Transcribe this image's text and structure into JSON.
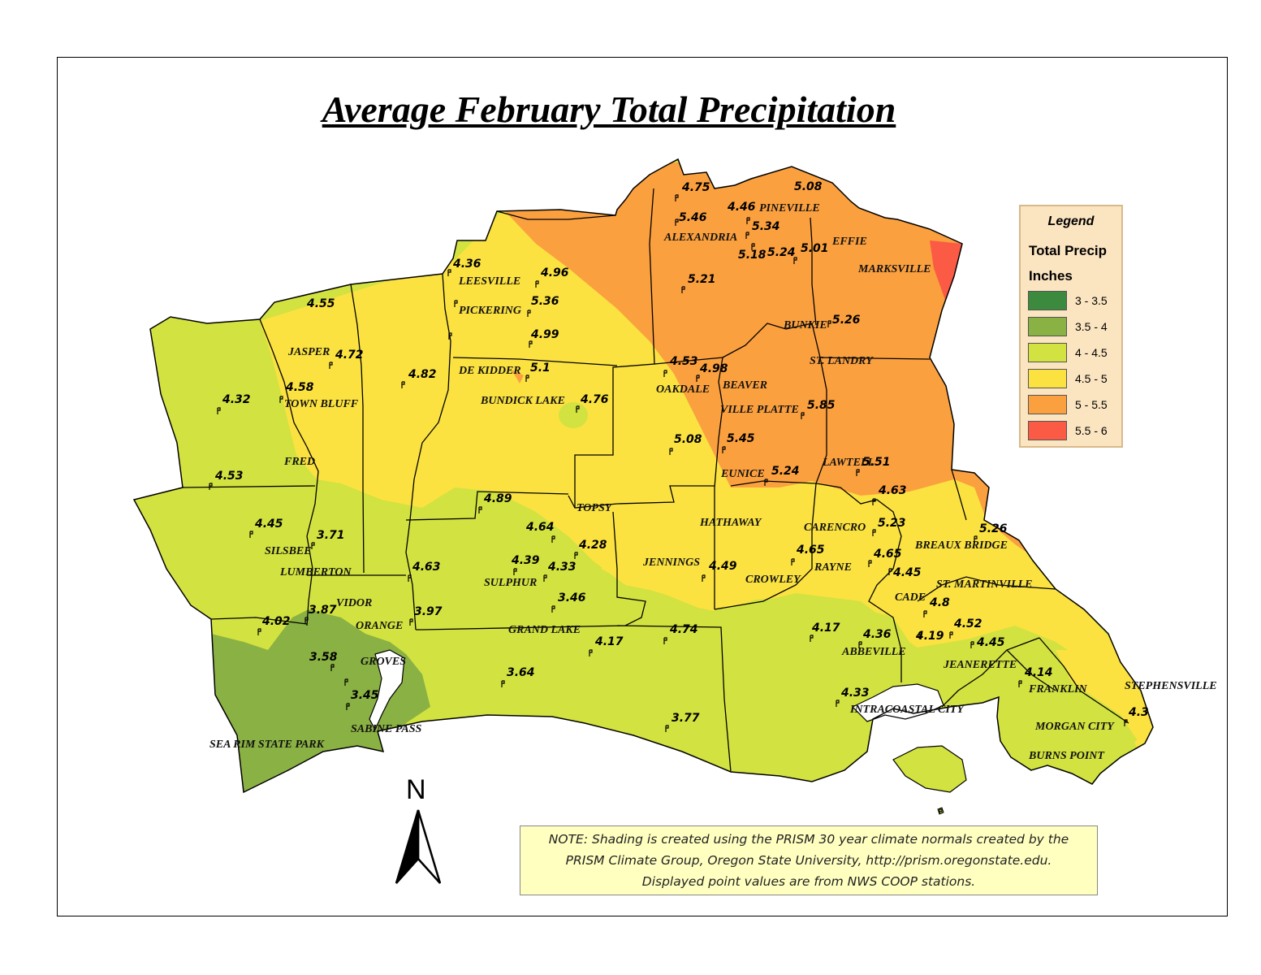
{
  "title": "Average February Total Precipitation",
  "legend": {
    "heading": "Legend",
    "field": "Total Precip",
    "units": "Inches",
    "classes": [
      {
        "label": "3 - 3.5",
        "color": "#3b8a3e"
      },
      {
        "label": "3.5 - 4",
        "color": "#8ab143"
      },
      {
        "label": "4 - 4.5",
        "color": "#d2e240"
      },
      {
        "label": "4.5 - 5",
        "color": "#fbe241"
      },
      {
        "label": "5 - 5.5",
        "color": "#fba03f"
      },
      {
        "label": "5.5 - 6",
        "color": "#fb5a44"
      }
    ]
  },
  "north_arrow": "N",
  "note": {
    "line1": "NOTE: Shading is created using the PRISM 30 year climate normals created by the",
    "line2": "PRISM Climate Group, Oregon State University, http://prism.oregonstate.edu.",
    "line3": "Displayed point values are from NWS COOP stations."
  },
  "places": {
    "pineville": "PINEVILLE",
    "alexandria": "ALEXANDRIA",
    "effie": "EFFIE",
    "marksville": "MARKSVILLE",
    "leesville": "LEESVILLE",
    "pickering": "PICKERING",
    "jasper": "JASPER",
    "town_bluff": "TOWN BLUFF",
    "dekidder": "DE KIDDER",
    "bundick_lake": "BUNDICK LAKE",
    "bunkie": "BUNKIE",
    "st_landry": "ST. LANDRY",
    "oakdale": "OAKDALE",
    "beaver": "BEAVER",
    "ville_platte": "VILLE PLATTE",
    "fred": "FRED",
    "eunice": "EUNICE",
    "lawtell": "LAWTELL",
    "topsy": "TOPSY",
    "hathaway": "HATHAWAY",
    "carencro": "CARENCRO",
    "breaux_bridge": "BREAUX BRIDGE",
    "silsbee": "SILSBEE",
    "jennings": "JENNINGS",
    "rayne": "RAYNE",
    "lumberton": "LUMBERTON",
    "sulphur": "SULPHUR",
    "crowley": "CROWLEY",
    "st_martinville": "ST. MARTINVILLE",
    "vidor": "VIDOR",
    "cade": "CADE",
    "orange": "ORANGE",
    "grand_lake": "GRAND LAKE",
    "abbeville": "ABBEVILLE",
    "groves": "GROVES",
    "jeanerette": "JEANERETTE",
    "franklin": "FRANKLIN",
    "stephensville": "STEPHENSVILLE",
    "intracoastal_city": "INTRACOASTAL CITY",
    "sabine_pass": "SABINE PASS",
    "morgan_city": "MORGAN CITY",
    "sea_rim": "SEA RIM STATE PARK",
    "burns_point": "BURNS POINT"
  },
  "stations": [
    {
      "value": "4.75"
    },
    {
      "value": "5.08"
    },
    {
      "value": "4.46"
    },
    {
      "value": "5.46"
    },
    {
      "value": "5.34"
    },
    {
      "value": "5.18"
    },
    {
      "value": "5.24"
    },
    {
      "value": "5.01"
    },
    {
      "value": "4.36"
    },
    {
      "value": "4.96"
    },
    {
      "value": "5.21"
    },
    {
      "value": "4.55"
    },
    {
      "value": "5.36"
    },
    {
      "value": "5.26"
    },
    {
      "value": "4.99"
    },
    {
      "value": "4.72"
    },
    {
      "value": "4.53"
    },
    {
      "value": "4.98"
    },
    {
      "value": "5.1"
    },
    {
      "value": "4.82"
    },
    {
      "value": "4.58"
    },
    {
      "value": "4.32"
    },
    {
      "value": "4.76"
    },
    {
      "value": "5.85"
    },
    {
      "value": "5.08"
    },
    {
      "value": "5.45"
    },
    {
      "value": "4.53"
    },
    {
      "value": "5.24"
    },
    {
      "value": "5.51"
    },
    {
      "value": "4.89"
    },
    {
      "value": "4.63"
    },
    {
      "value": "4.45"
    },
    {
      "value": "5.23"
    },
    {
      "value": "4.64"
    },
    {
      "value": "3.71"
    },
    {
      "value": "5.26"
    },
    {
      "value": "4.28"
    },
    {
      "value": "4.65"
    },
    {
      "value": "4.65"
    },
    {
      "value": "4.39"
    },
    {
      "value": "4.33"
    },
    {
      "value": "4.49"
    },
    {
      "value": "4.63"
    },
    {
      "value": "4.45"
    },
    {
      "value": "3.46"
    },
    {
      "value": "3.87"
    },
    {
      "value": "3.97"
    },
    {
      "value": "4.8"
    },
    {
      "value": "4.02"
    },
    {
      "value": "4.17"
    },
    {
      "value": "4.74"
    },
    {
      "value": "4.52"
    },
    {
      "value": "4.36"
    },
    {
      "value": "4.19"
    },
    {
      "value": "4.17"
    },
    {
      "value": "4.45"
    },
    {
      "value": "3.58"
    },
    {
      "value": "3.64"
    },
    {
      "value": "4.14"
    },
    {
      "value": "3.45"
    },
    {
      "value": "4.33"
    },
    {
      "value": "3.77"
    },
    {
      "value": "4.3"
    }
  ]
}
